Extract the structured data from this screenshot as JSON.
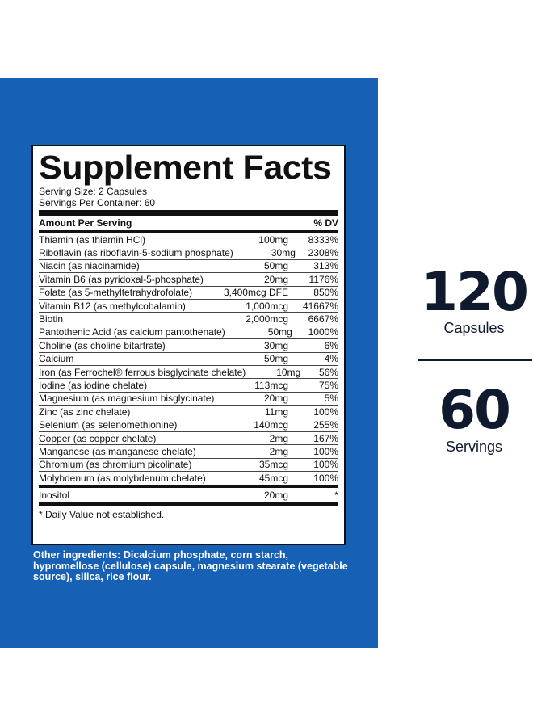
{
  "title": "Supplement Facts",
  "serving_size": "Serving Size: 2 Capsules",
  "servings_per_container": "Servings Per Container: 60",
  "header": {
    "amount_label": "Amount Per Serving",
    "dv_label": "% DV"
  },
  "nutrients": [
    {
      "name": "Thiamin (as thiamin HCl)",
      "amount": "100mg",
      "dv": "8333%"
    },
    {
      "name": "Riboflavin (as riboflavin-5-sodium phosphate)",
      "amount": "30mg",
      "dv": "2308%"
    },
    {
      "name": "Niacin (as niacinamide)",
      "amount": "50mg",
      "dv": "313%"
    },
    {
      "name": "Vitamin B6 (as pyridoxal-5-phosphate)",
      "amount": "20mg",
      "dv": "1176%"
    },
    {
      "name": "Folate (as 5-methyltetrahydrofolate)",
      "amount": "3,400mcg DFE",
      "dv": "850%"
    },
    {
      "name": "Vitamin B12 (as methylcobalamin)",
      "amount": "1,000mcg",
      "dv": "41667%"
    },
    {
      "name": "Biotin",
      "amount": "2,000mcg",
      "dv": "6667%"
    },
    {
      "name": "Pantothenic Acid (as calcium pantothenate)",
      "amount": "50mg",
      "dv": "1000%"
    },
    {
      "name": "Choline (as choline bitartrate)",
      "amount": "30mg",
      "dv": "6%"
    },
    {
      "name": "Calcium",
      "amount": "50mg",
      "dv": "4%"
    },
    {
      "name": "Iron (as Ferrochel® ferrous bisglycinate chelate)",
      "amount": "10mg",
      "dv": "56%"
    },
    {
      "name": "Iodine (as iodine chelate)",
      "amount": "113mcg",
      "dv": "75%"
    },
    {
      "name": "Magnesium (as magnesium bisglycinate)",
      "amount": "20mg",
      "dv": "5%"
    },
    {
      "name": "Zinc (as zinc chelate)",
      "amount": "11mg",
      "dv": "100%"
    },
    {
      "name": "Selenium (as selenomethionine)",
      "amount": "140mcg",
      "dv": "255%"
    },
    {
      "name": "Copper (as copper chelate)",
      "amount": "2mg",
      "dv": "167%"
    },
    {
      "name": "Manganese (as manganese chelate)",
      "amount": "2mg",
      "dv": "100%"
    },
    {
      "name": "Chromium (as chromium picolinate)",
      "amount": "35mcg",
      "dv": "100%"
    },
    {
      "name": "Molybdenum (as molybdenum chelate)",
      "amount": "45mcg",
      "dv": "100%"
    }
  ],
  "inositol": {
    "name": "Inositol",
    "amount": "20mg",
    "dv": "*"
  },
  "footnote": "* Daily Value not established.",
  "other_ingredients": "Other ingredients: Dicalcium phosphate, corn starch, hypromellose (cellulose) capsule, magnesium stearate (vegetable source), silica, rice flour.",
  "capsules": {
    "count": "120",
    "label": "Capsules"
  },
  "servings": {
    "count": "60",
    "label": "Servings"
  },
  "colors": {
    "panel_blue": "#1660b5",
    "text_dark": "#0f1a2e"
  }
}
